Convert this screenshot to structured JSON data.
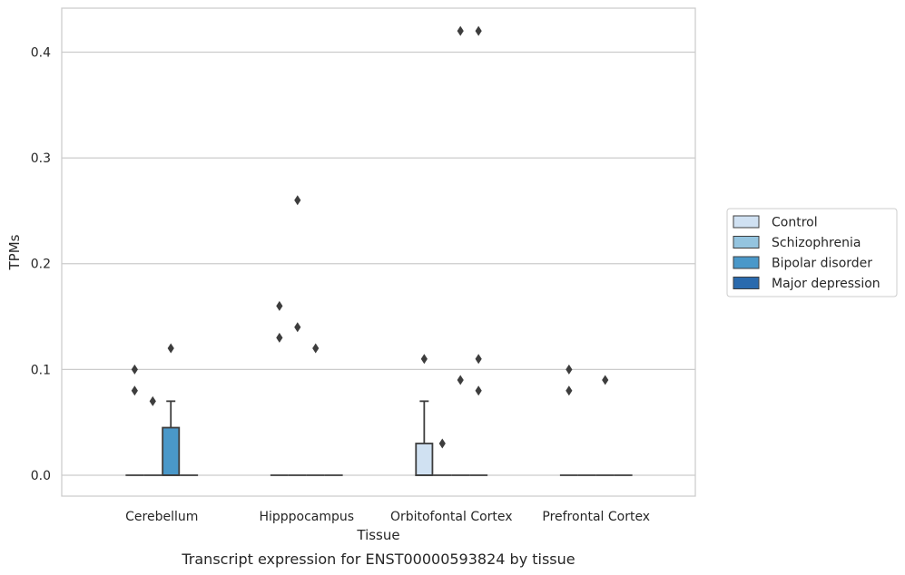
{
  "chart_data": {
    "type": "box",
    "title": "",
    "xlabel": "Tissue",
    "ylabel": "TPMs",
    "caption": "Transcript expression for ENST00000593824 by tissue",
    "categories": [
      "Cerebellum",
      "Hipppocampus",
      "Orbitofontal Cortex",
      "Prefrontal Cortex"
    ],
    "ylim": [
      -0.02,
      0.44
    ],
    "yticks": [
      0.0,
      0.1,
      0.2,
      0.3,
      0.4
    ],
    "ytick_labels": [
      "0.0",
      "0.1",
      "0.2",
      "0.3",
      "0.4"
    ],
    "grid": true,
    "legend_position": "right",
    "series": [
      {
        "name": "Control",
        "color": "#d0e1f2",
        "boxes": [
          {
            "q1": 0,
            "median": 0,
            "q3": 0,
            "whislo": 0,
            "whishi": 0,
            "fliers": [
              0.08,
              0.1
            ]
          },
          {
            "q1": 0,
            "median": 0,
            "q3": 0,
            "whislo": 0,
            "whishi": 0,
            "fliers": [
              0.13,
              0.16
            ]
          },
          {
            "q1": 0,
            "median": 0,
            "q3": 0.03,
            "whislo": 0,
            "whishi": 0.07,
            "fliers": [
              0.11
            ]
          },
          {
            "q1": 0,
            "median": 0,
            "q3": 0,
            "whislo": 0,
            "whishi": 0,
            "fliers": [
              0.08,
              0.1
            ]
          }
        ]
      },
      {
        "name": "Schizophrenia",
        "color": "#94c4df",
        "boxes": [
          {
            "q1": 0,
            "median": 0,
            "q3": 0,
            "whislo": 0,
            "whishi": 0,
            "fliers": [
              0.07
            ]
          },
          {
            "q1": 0,
            "median": 0,
            "q3": 0,
            "whislo": 0,
            "whishi": 0,
            "fliers": [
              0.14,
              0.26
            ]
          },
          {
            "q1": 0,
            "median": 0,
            "q3": 0,
            "whislo": 0,
            "whishi": 0,
            "fliers": [
              0.03
            ]
          },
          {
            "q1": 0,
            "median": 0,
            "q3": 0,
            "whislo": 0,
            "whishi": 0,
            "fliers": []
          }
        ]
      },
      {
        "name": "Bipolar disorder",
        "color": "#4a98c9",
        "boxes": [
          {
            "q1": 0,
            "median": 0,
            "q3": 0.045,
            "whislo": 0,
            "whishi": 0.07,
            "fliers": [
              0.12
            ]
          },
          {
            "q1": 0,
            "median": 0,
            "q3": 0,
            "whislo": 0,
            "whishi": 0,
            "fliers": [
              0.12
            ]
          },
          {
            "q1": 0,
            "median": 0,
            "q3": 0,
            "whislo": 0,
            "whishi": 0,
            "fliers": [
              0.09,
              0.42
            ]
          },
          {
            "q1": 0,
            "median": 0,
            "q3": 0,
            "whislo": 0,
            "whishi": 0,
            "fliers": [
              0.09
            ]
          }
        ]
      },
      {
        "name": "Major depression",
        "color": "#2a6aad",
        "boxes": [
          {
            "q1": 0,
            "median": 0,
            "q3": 0,
            "whislo": 0,
            "whishi": 0,
            "fliers": []
          },
          {
            "q1": 0,
            "median": 0,
            "q3": 0,
            "whislo": 0,
            "whishi": 0,
            "fliers": []
          },
          {
            "q1": 0,
            "median": 0,
            "q3": 0,
            "whislo": 0,
            "whishi": 0,
            "fliers": [
              0.08,
              0.11,
              0.42
            ]
          },
          {
            "q1": 0,
            "median": 0,
            "q3": 0,
            "whislo": 0,
            "whishi": 0,
            "fliers": []
          }
        ]
      }
    ]
  }
}
